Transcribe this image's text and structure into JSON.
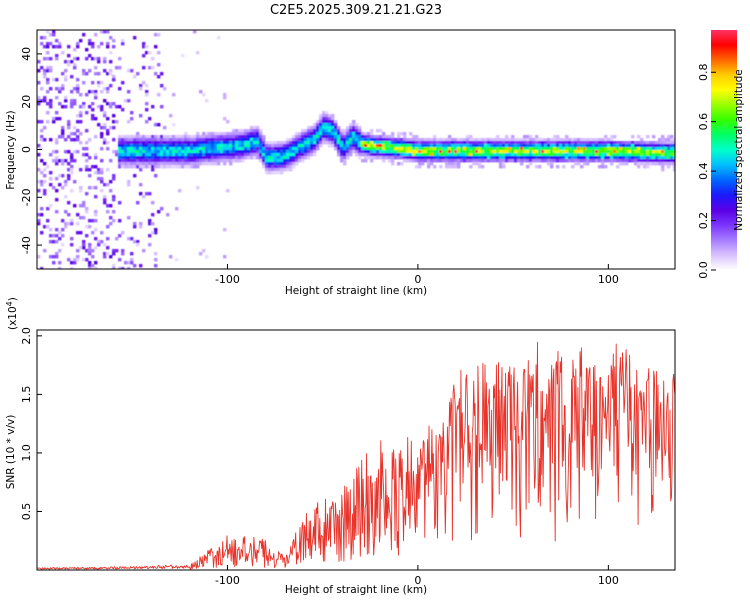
{
  "title": "C2E5.2025.309.21.21.G23",
  "chart_data": [
    {
      "type": "heatmap",
      "name": "spectrogram",
      "xlabel": "Height of straight line (km)",
      "ylabel": "Frequency (Hz)",
      "xlim": [
        -200,
        135
      ],
      "ylim": [
        -50,
        50
      ],
      "xticks": [
        -100,
        0,
        100
      ],
      "yticks": [
        -40,
        -20,
        0,
        20,
        40
      ],
      "colorbar": {
        "label": "Normalized spectral amplitude",
        "range": [
          0,
          1
        ],
        "ticks": [
          "0.0",
          "0.2",
          "0.4",
          "0.6",
          "0.8"
        ],
        "colors": [
          "#ffffff",
          "#d9c2ff",
          "#a67cff",
          "#7a33ff",
          "#5a00e6",
          "#1a1aff",
          "#0066ff",
          "#00bfff",
          "#00ffcc",
          "#00ff66",
          "#33ff00",
          "#99ff00",
          "#ffff00",
          "#ffcc00",
          "#ff6600",
          "#ff0000",
          "#ff3366"
        ]
      },
      "features": {
        "noise_band_x": [
          -200,
          -135
        ],
        "ridge": [
          [
            -155,
            0
          ],
          [
            -140,
            0
          ],
          [
            -120,
            0
          ],
          [
            -110,
            1
          ],
          [
            -95,
            2
          ],
          [
            -85,
            4
          ],
          [
            -80,
            -3
          ],
          [
            -70,
            -2
          ],
          [
            -62,
            2
          ],
          [
            -55,
            5
          ],
          [
            -50,
            10
          ],
          [
            -45,
            8
          ],
          [
            -40,
            1
          ],
          [
            -35,
            6
          ],
          [
            -30,
            3
          ],
          [
            -25,
            2
          ],
          [
            -10,
            1
          ],
          [
            0,
            0
          ],
          [
            20,
            0
          ],
          [
            60,
            0
          ],
          [
            100,
            0
          ],
          [
            135,
            -1
          ]
        ],
        "peak_amplitude": 0.95
      }
    },
    {
      "type": "line",
      "name": "snr",
      "xlabel": "Height of straight line (km)",
      "ylabel": "SNR (10 * v/v)",
      "y_multiplier": "(x10^4)",
      "xlim": [
        -200,
        135
      ],
      "ylim": [
        0,
        2.05
      ],
      "xticks": [
        -100,
        0,
        100
      ],
      "yticks": [
        "0.5",
        "1.0",
        "1.5",
        "2.0"
      ],
      "line_color": "#e8332a",
      "envelope": {
        "x": [
          -200,
          -150,
          -120,
          -100,
          -80,
          -70,
          -60,
          -45,
          -35,
          -30,
          -20,
          -10,
          0,
          10,
          15,
          20,
          30,
          50,
          60,
          80,
          100,
          120,
          135
        ],
        "high": [
          0.02,
          0.03,
          0.05,
          0.3,
          0.28,
          0.12,
          0.48,
          0.68,
          0.78,
          1.05,
          1.15,
          1.05,
          1.28,
          1.2,
          1.3,
          1.72,
          1.78,
          1.8,
          2.03,
          1.85,
          2.02,
          1.75,
          1.7
        ],
        "low": [
          0.0,
          0.0,
          0.0,
          0.02,
          0.02,
          0.01,
          0.05,
          0.05,
          0.05,
          0.1,
          0.1,
          0.1,
          0.2,
          0.2,
          0.1,
          0.1,
          0.1,
          0.2,
          0.1,
          0.2,
          0.2,
          0.3,
          0.4
        ]
      }
    }
  ]
}
